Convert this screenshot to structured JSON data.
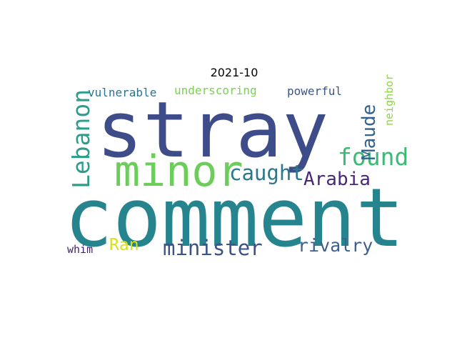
{
  "title": "2021-10",
  "words": {
    "stray": {
      "text": "stray",
      "color": "#3e4c8a"
    },
    "comment": {
      "text": "comment",
      "color": "#26848e"
    },
    "minor": {
      "text": "minor",
      "color": "#6ccd5a"
    },
    "caught": {
      "text": "caught",
      "color": "#2a788e"
    },
    "found": {
      "text": "found",
      "color": "#3bbb75"
    },
    "lebanon": {
      "text": "Lebanon",
      "color": "#2c9c8b"
    },
    "maude": {
      "text": "Maude",
      "color": "#33638d"
    },
    "arabia": {
      "text": "Arabia",
      "color": "#482878"
    },
    "minister": {
      "text": "minister",
      "color": "#3b528b"
    },
    "rivalry": {
      "text": "rivalry",
      "color": "#3e5f8e"
    },
    "ran": {
      "text": "Ran",
      "color": "#d8e219"
    },
    "whim": {
      "text": "whim",
      "color": "#481d6f"
    },
    "vulnerable": {
      "text": "vulnerable",
      "color": "#2c738e"
    },
    "underscoring": {
      "text": "underscoring",
      "color": "#7ad151"
    },
    "powerful": {
      "text": "powerful",
      "color": "#39568c"
    },
    "neighbor": {
      "text": "neighbor",
      "color": "#8fd744"
    }
  }
}
